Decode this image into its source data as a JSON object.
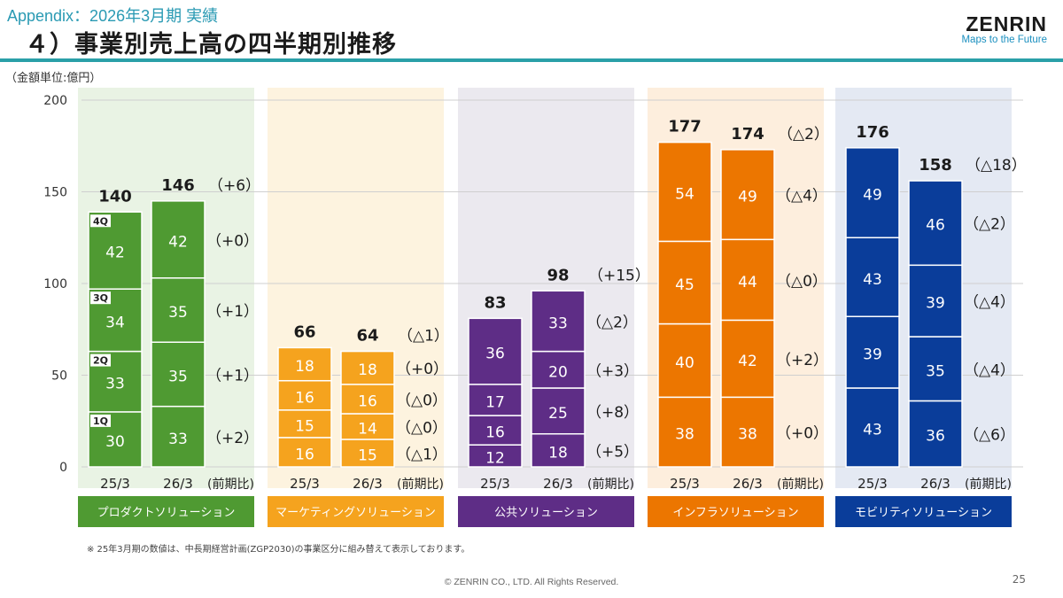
{
  "header": {
    "appendix": "Appendix：2026年3月期 実績",
    "title": "４）事業別売上高の四半期別推移",
    "logo": "ZENRIN",
    "logo_tagline": "Maps to the Future"
  },
  "unit_label": "（金額単位:億円）",
  "footnote": "※ 25年3月期の数値は、中長期経営計画(ZGP2030)の事業区分に組み替えて表示しております。",
  "copyright": "© ZENRIN CO., LTD. All Rights Reserved.",
  "page_number": "25",
  "chart_data": {
    "type": "bar",
    "stacked": true,
    "ylim": [
      0,
      200
    ],
    "yticks": [
      0,
      50,
      100,
      150,
      200
    ],
    "quarter_labels": [
      "1Q",
      "2Q",
      "3Q",
      "4Q"
    ],
    "comparison_label": "(前期比)",
    "segments": [
      {
        "name": "プロダクトソリューション",
        "bg": "#e9f3e4",
        "color": "#4f9a32",
        "label_bg": "#4f9a32",
        "bars": [
          {
            "category": "25/3",
            "quarters": [
              30,
              33,
              34,
              42
            ],
            "total": "140",
            "total_change": "",
            "quarter_changes": []
          },
          {
            "category": "26/3",
            "quarters": [
              33,
              35,
              35,
              42
            ],
            "total": "146",
            "total_change": "（+6）",
            "quarter_changes": [
              "（+2）",
              "（+1）",
              "（+1）",
              "（+0）"
            ]
          }
        ]
      },
      {
        "name": "マーケティングソリューション",
        "bg": "#fdf3df",
        "color": "#f5a31e",
        "label_bg": "#f5a31e",
        "bars": [
          {
            "category": "25/3",
            "quarters": [
              16,
              15,
              16,
              18
            ],
            "total": "66",
            "total_change": "",
            "quarter_changes": []
          },
          {
            "category": "26/3",
            "quarters": [
              15,
              14,
              16,
              18
            ],
            "total": "64",
            "total_change": "（△1）",
            "quarter_changes": [
              "（△1）",
              "（△0）",
              "（△0）",
              "（+0）"
            ]
          }
        ]
      },
      {
        "name": "公共ソリューション",
        "bg": "#ebe9ef",
        "color": "#5e2d86",
        "label_bg": "#5e2d86",
        "bars": [
          {
            "category": "25/3",
            "quarters": [
              12,
              16,
              17,
              36
            ],
            "total": "83",
            "total_change": "",
            "quarter_changes": []
          },
          {
            "category": "26/3",
            "quarters": [
              18,
              25,
              20,
              33
            ],
            "total": "98",
            "total_change": "（+15）",
            "quarter_changes": [
              "（+5）",
              "（+8）",
              "（+3）",
              "（△2）"
            ]
          }
        ]
      },
      {
        "name": "インフラソリューション",
        "bg": "#fdeedd",
        "color": "#ec7600",
        "label_bg": "#ec7600",
        "bars": [
          {
            "category": "25/3",
            "quarters": [
              38,
              40,
              45,
              54
            ],
            "total": "177",
            "total_change": "",
            "quarter_changes": []
          },
          {
            "category": "26/3",
            "quarters": [
              38,
              42,
              44,
              49
            ],
            "total": "174",
            "total_change": "（△2）",
            "quarter_changes": [
              "（+0）",
              "（+2）",
              "（△0）",
              "（△4）"
            ]
          }
        ]
      },
      {
        "name": "モビリティソリューション",
        "bg": "#e4e9f3",
        "color": "#0a3d9a",
        "label_bg": "#0a3d9a",
        "bars": [
          {
            "category": "25/3",
            "quarters": [
              43,
              39,
              43,
              49
            ],
            "total": "176",
            "total_change": "",
            "quarter_changes": []
          },
          {
            "category": "26/3",
            "quarters": [
              36,
              35,
              39,
              46
            ],
            "total": "158",
            "total_change": "（△18）",
            "quarter_changes": [
              "（△6）",
              "（△4）",
              "（△4）",
              "（△2）"
            ]
          }
        ]
      }
    ]
  }
}
